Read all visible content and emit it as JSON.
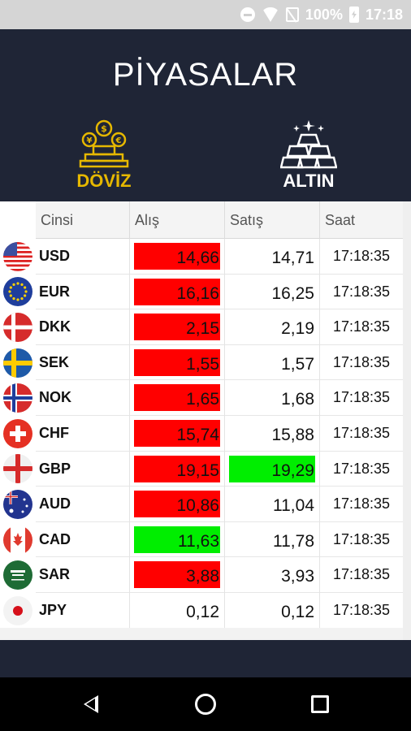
{
  "status_bar": {
    "battery": "100%",
    "time": "17:18"
  },
  "header": {
    "title": "PİYASALAR"
  },
  "tabs": [
    {
      "label": "DÖVİZ",
      "icon": "currency-coins-icon",
      "active": true,
      "color": "#e6b800"
    },
    {
      "label": "ALTIN",
      "icon": "gold-bars-icon",
      "active": false,
      "color": "#ffffff"
    }
  ],
  "table": {
    "columns": [
      "Cinsi",
      "Alış",
      "Satış",
      "Saat"
    ],
    "rows": [
      {
        "code": "USD",
        "flag": "usa-flag-icon",
        "alis": "14,66",
        "satis": "14,71",
        "saat": "17:18:35",
        "alis_color": "#ff0000",
        "satis_color": ""
      },
      {
        "code": "EUR",
        "flag": "eu-flag-icon",
        "alis": "16,16",
        "satis": "16,25",
        "saat": "17:18:35",
        "alis_color": "#ff0000",
        "satis_color": ""
      },
      {
        "code": "DKK",
        "flag": "denmark-flag-icon",
        "alis": "2,15",
        "satis": "2,19",
        "saat": "17:18:35",
        "alis_color": "#ff0000",
        "satis_color": ""
      },
      {
        "code": "SEK",
        "flag": "sweden-flag-icon",
        "alis": "1,55",
        "satis": "1,57",
        "saat": "17:18:35",
        "alis_color": "#ff0000",
        "satis_color": ""
      },
      {
        "code": "NOK",
        "flag": "norway-flag-icon",
        "alis": "1,65",
        "satis": "1,68",
        "saat": "17:18:35",
        "alis_color": "#ff0000",
        "satis_color": ""
      },
      {
        "code": "CHF",
        "flag": "switzerland-flag-icon",
        "alis": "15,74",
        "satis": "15,88",
        "saat": "17:18:35",
        "alis_color": "#ff0000",
        "satis_color": ""
      },
      {
        "code": "GBP",
        "flag": "england-flag-icon",
        "alis": "19,15",
        "satis": "19,29",
        "saat": "17:18:35",
        "alis_color": "#ff0000",
        "satis_color": "#00ee00"
      },
      {
        "code": "AUD",
        "flag": "australia-flag-icon",
        "alis": "10,86",
        "satis": "11,04",
        "saat": "17:18:35",
        "alis_color": "#ff0000",
        "satis_color": ""
      },
      {
        "code": "CAD",
        "flag": "canada-flag-icon",
        "alis": "11,63",
        "satis": "11,78",
        "saat": "17:18:35",
        "alis_color": "#00ee00",
        "satis_color": ""
      },
      {
        "code": "SAR",
        "flag": "saudi-arabia-flag-icon",
        "alis": "3,88",
        "satis": "3,93",
        "saat": "17:18:35",
        "alis_color": "#ff0000",
        "satis_color": ""
      },
      {
        "code": "JPY",
        "flag": "japan-flag-icon",
        "alis": "0,12",
        "satis": "0,12",
        "saat": "17:18:35",
        "alis_color": "",
        "satis_color": ""
      }
    ]
  },
  "nav": {
    "back_icon": "back-triangle-icon",
    "home_icon": "home-circle-icon",
    "recent_icon": "recent-square-icon"
  }
}
